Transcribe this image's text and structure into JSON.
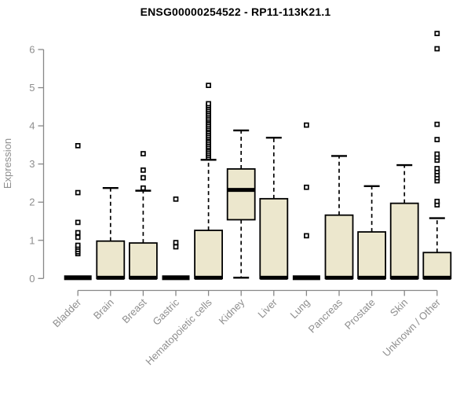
{
  "chart_data": {
    "type": "boxplot",
    "title": "ENSG00000254522 - RP11-113K21.1",
    "ylabel": "Expression",
    "xlabel": "",
    "ylim": [
      0,
      6.5
    ],
    "yticks": [
      0,
      1,
      2,
      3,
      4,
      5,
      6
    ],
    "grid": false,
    "legend": "none",
    "categories": [
      "Bladder",
      "Brain",
      "Breast",
      "Gastric",
      "Hematopoietic cells",
      "Kidney",
      "Liver",
      "Lung",
      "Pancreas",
      "Prostate",
      "Skin",
      "Unknown / Other"
    ],
    "series": [
      {
        "name": "Bladder",
        "collapsed": true,
        "q1": 0,
        "median": 0.02,
        "q3": 0.04,
        "whisker_low": 0,
        "whisker_high": 0.04,
        "outliers": [
          0.65,
          0.7,
          0.76,
          0.82,
          0.87,
          1.08,
          1.2,
          1.47,
          2.25,
          3.48
        ]
      },
      {
        "name": "Brain",
        "collapsed": false,
        "q1": 0,
        "median": 0.02,
        "q3": 0.98,
        "whisker_low": 0,
        "whisker_high": 2.37,
        "outliers": []
      },
      {
        "name": "Breast",
        "collapsed": false,
        "q1": 0,
        "median": 0.02,
        "q3": 0.93,
        "whisker_low": 0,
        "whisker_high": 2.3,
        "outliers": [
          2.37,
          2.64,
          2.84,
          3.27
        ]
      },
      {
        "name": "Gastric",
        "collapsed": true,
        "q1": 0,
        "median": 0.02,
        "q3": 0.04,
        "whisker_low": 0,
        "whisker_high": 0.04,
        "outliers": [
          0.83,
          0.94,
          2.08
        ]
      },
      {
        "name": "Hematopoietic cells",
        "collapsed": false,
        "q1": 0,
        "median": 0.02,
        "q3": 1.26,
        "whisker_low": 0,
        "whisker_high": 3.11,
        "outliers": [
          3.17,
          3.22,
          3.27,
          3.32,
          3.37,
          3.42,
          3.46,
          3.51,
          3.56,
          3.61,
          3.66,
          3.7,
          3.75,
          3.8,
          3.85,
          3.9,
          3.94,
          3.99,
          4.04,
          4.09,
          4.14,
          4.18,
          4.23,
          4.28,
          4.33,
          4.38,
          4.43,
          4.48,
          4.53,
          4.58,
          5.06
        ]
      },
      {
        "name": "Kidney",
        "collapsed": false,
        "q1": 1.54,
        "median": 2.32,
        "q3": 2.87,
        "whisker_low": 0.02,
        "whisker_high": 3.88,
        "outliers": []
      },
      {
        "name": "Liver",
        "collapsed": false,
        "q1": 0,
        "median": 0.02,
        "q3": 2.09,
        "whisker_low": 0,
        "whisker_high": 3.69,
        "outliers": []
      },
      {
        "name": "Lung",
        "collapsed": true,
        "q1": 0,
        "median": 0.02,
        "q3": 0.04,
        "whisker_low": 0,
        "whisker_high": 0.04,
        "outliers": [
          1.12,
          2.39,
          4.02
        ]
      },
      {
        "name": "Pancreas",
        "collapsed": false,
        "q1": 0,
        "median": 0.02,
        "q3": 1.66,
        "whisker_low": 0,
        "whisker_high": 3.21,
        "outliers": []
      },
      {
        "name": "Prostate",
        "collapsed": false,
        "q1": 0,
        "median": 0.02,
        "q3": 1.22,
        "whisker_low": 0,
        "whisker_high": 2.42,
        "outliers": []
      },
      {
        "name": "Skin",
        "collapsed": false,
        "q1": 0,
        "median": 0.02,
        "q3": 1.97,
        "whisker_low": 0,
        "whisker_high": 2.97,
        "outliers": []
      },
      {
        "name": "Unknown / Other",
        "collapsed": false,
        "q1": 0,
        "median": 0.02,
        "q3": 0.68,
        "whisker_low": 0,
        "whisker_high": 1.58,
        "outliers": [
          1.93,
          2.02,
          2.56,
          2.64,
          2.72,
          2.8,
          2.88,
          3.1,
          3.18,
          3.26,
          3.64,
          4.04,
          6.02,
          6.42
        ]
      }
    ],
    "colors": {
      "box_fill": "#ECE7CD",
      "box_stroke": "#000000",
      "median": "#000000",
      "whisker": "#000000",
      "outlier_fill": "#ffffff",
      "outlier_stroke": "#000000",
      "axis": "#878787",
      "tick_labels": "#8e8e8e",
      "title": "#000000",
      "background": "#ffffff"
    }
  }
}
